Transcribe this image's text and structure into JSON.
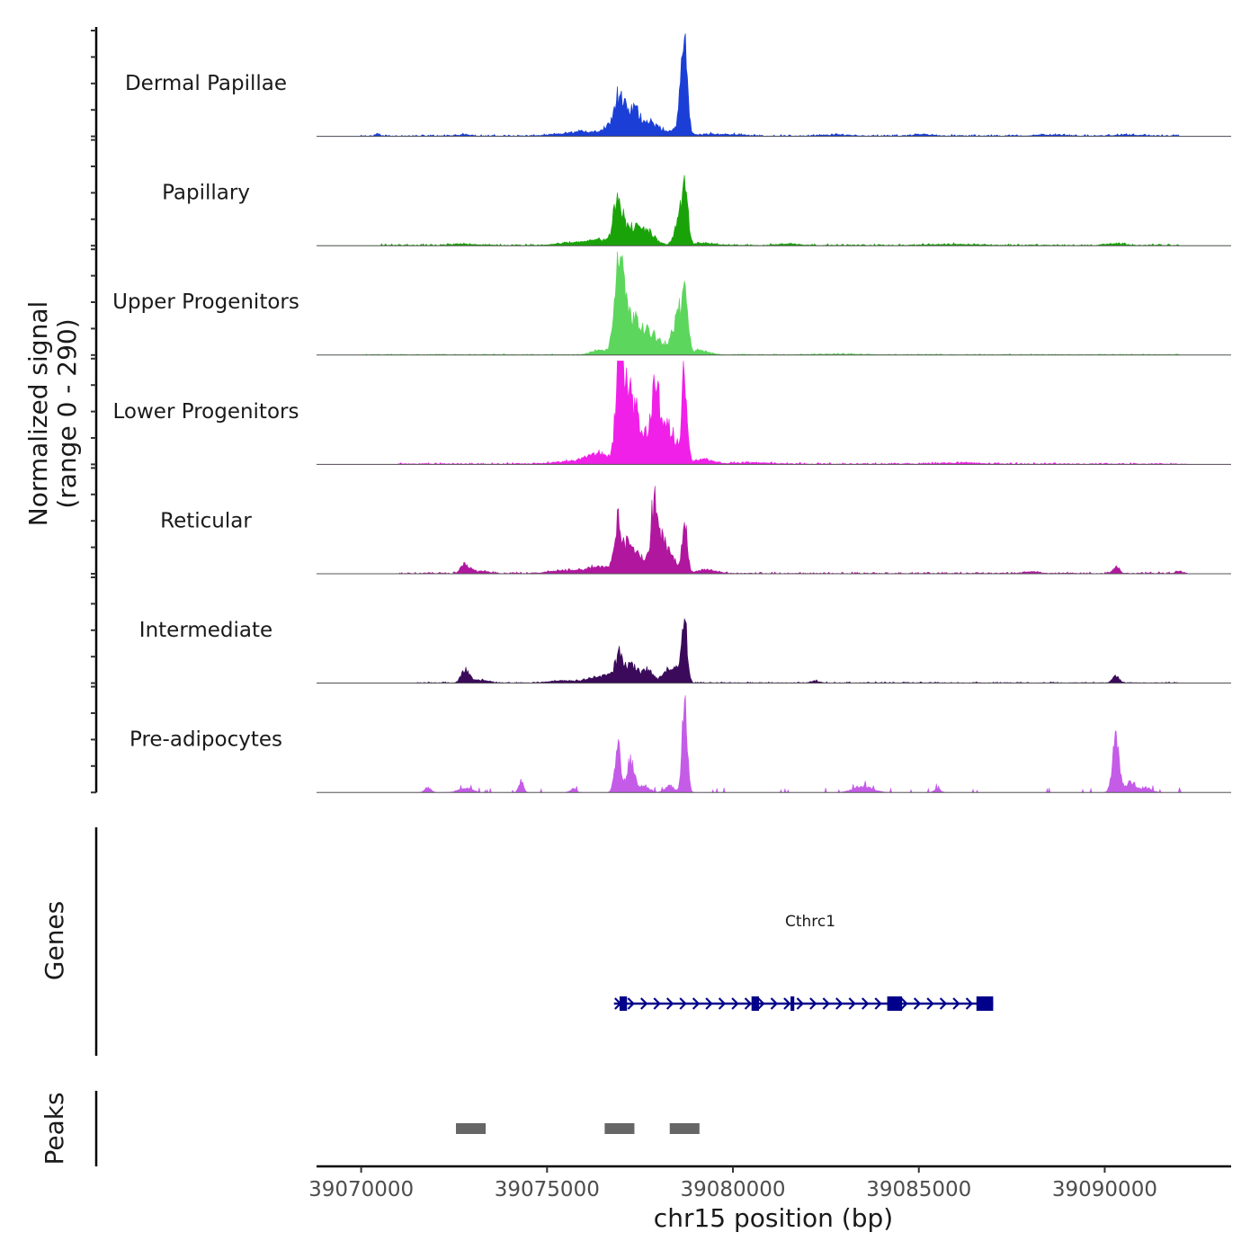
{
  "chart_data": {
    "type": "area",
    "ylabel_line1": "Normalized signal",
    "ylabel_line2": "(range 0 - 290)",
    "ylim": [
      0,
      290
    ],
    "xlabel": "chr15 position (bp)",
    "xlim": [
      39068800,
      39093400
    ],
    "x_ticks": [
      39070000,
      39075000,
      39080000,
      39085000,
      39090000
    ],
    "x_tick_labels": [
      "39070000",
      "39075000",
      "39080000",
      "39085000",
      "39090000"
    ],
    "tracks": [
      {
        "name": "Dermal Papillae",
        "color": "#1B3FD6",
        "base": 3,
        "noise_range": [
          39070000,
          39092000
        ],
        "noise_step": 150,
        "peaks": [
          [
            39070450,
            5,
            60
          ],
          [
            39072800,
            4,
            150
          ],
          [
            39075500,
            5,
            400
          ],
          [
            39076100,
            10,
            350
          ],
          [
            39076700,
            26,
            200
          ],
          [
            39076900,
            90,
            100
          ],
          [
            39077100,
            60,
            100
          ],
          [
            39077350,
            70,
            120
          ],
          [
            39077650,
            35,
            150
          ],
          [
            39077950,
            22,
            200
          ],
          [
            39078400,
            10,
            150
          ],
          [
            39078700,
            230,
            80
          ],
          [
            39078600,
            60,
            90
          ],
          [
            39079300,
            5,
            300
          ],
          [
            39080100,
            4,
            300
          ],
          [
            39082800,
            3,
            400
          ],
          [
            39085100,
            4,
            300
          ],
          [
            39088500,
            3,
            400
          ],
          [
            39090600,
            3,
            400
          ]
        ]
      },
      {
        "name": "Papillary",
        "color": "#1AA309",
        "base": 3,
        "noise_range": [
          39070500,
          39092000
        ],
        "noise_step": 200,
        "peaks": [
          [
            39072800,
            4,
            300
          ],
          [
            39075600,
            6,
            400
          ],
          [
            39076300,
            14,
            300
          ],
          [
            39076900,
            120,
            100
          ],
          [
            39077200,
            50,
            300
          ],
          [
            39077700,
            30,
            200
          ],
          [
            39078700,
            175,
            80
          ],
          [
            39078500,
            50,
            100
          ],
          [
            39079200,
            6,
            300
          ],
          [
            39081500,
            4,
            300
          ],
          [
            39086000,
            3,
            600
          ],
          [
            39090300,
            5,
            200
          ]
        ]
      },
      {
        "name": "Upper Progenitors",
        "color": "#5CD65C",
        "base": 2,
        "noise_range": [
          39070000,
          39092000
        ],
        "noise_step": 200,
        "peaks": [
          [
            39076450,
            12,
            250
          ],
          [
            39076950,
            250,
            120
          ],
          [
            39077250,
            95,
            200
          ],
          [
            39077750,
            60,
            250
          ],
          [
            39078300,
            20,
            200
          ],
          [
            39078700,
            215,
            80
          ],
          [
            39078500,
            80,
            120
          ],
          [
            39079100,
            12,
            250
          ],
          [
            39083000,
            2,
            600
          ]
        ]
      },
      {
        "name": "Lower Progenitors",
        "color": "#F020E8",
        "base": 3,
        "noise_range": [
          39071000,
          39092200
        ],
        "noise_step": 150,
        "peaks": [
          [
            39075800,
            8,
            500
          ],
          [
            39076400,
            25,
            300
          ],
          [
            39076950,
            280,
            100
          ],
          [
            39077200,
            170,
            150
          ],
          [
            39077500,
            100,
            150
          ],
          [
            39077900,
            195,
            120
          ],
          [
            39078150,
            80,
            150
          ],
          [
            39078400,
            60,
            150
          ],
          [
            39078700,
            240,
            70
          ],
          [
            39079200,
            14,
            250
          ],
          [
            39080500,
            4,
            500
          ],
          [
            39086000,
            3,
            600
          ]
        ]
      },
      {
        "name": "Reticular",
        "color": "#B0179E",
        "base": 3,
        "noise_range": [
          39071000,
          39092200
        ],
        "noise_step": 170,
        "peaks": [
          [
            39072800,
            25,
            120
          ],
          [
            39073200,
            6,
            200
          ],
          [
            39075500,
            8,
            400
          ],
          [
            39076400,
            20,
            300
          ],
          [
            39076900,
            130,
            100
          ],
          [
            39077200,
            80,
            150
          ],
          [
            39077500,
            40,
            150
          ],
          [
            39077900,
            210,
            100
          ],
          [
            39078150,
            70,
            120
          ],
          [
            39078400,
            30,
            150
          ],
          [
            39078700,
            140,
            70
          ],
          [
            39079300,
            10,
            250
          ],
          [
            39088000,
            5,
            200
          ],
          [
            39090300,
            18,
            90
          ],
          [
            39092000,
            5,
            100
          ]
        ]
      },
      {
        "name": "Intermediate",
        "color": "#3B0A5A",
        "base": 2,
        "noise_range": [
          39071500,
          39092000
        ],
        "noise_step": 200,
        "peaks": [
          [
            39072800,
            40,
            100
          ],
          [
            39073200,
            8,
            200
          ],
          [
            39075500,
            6,
            400
          ],
          [
            39076500,
            20,
            300
          ],
          [
            39076950,
            70,
            120
          ],
          [
            39077300,
            45,
            150
          ],
          [
            39077700,
            35,
            150
          ],
          [
            39078200,
            30,
            120
          ],
          [
            39078700,
            165,
            70
          ],
          [
            39078450,
            45,
            120
          ],
          [
            39082200,
            6,
            100
          ],
          [
            39090300,
            20,
            90
          ]
        ]
      },
      {
        "name": "Pre-adipocytes",
        "color": "#C45CE8",
        "base": 0,
        "noise_range": [
          39070700,
          39092100
        ],
        "noise_step": 220,
        "peaks": [
          [
            39071800,
            14,
            80
          ],
          [
            39072800,
            12,
            180
          ],
          [
            39074300,
            35,
            60
          ],
          [
            39075700,
            10,
            80
          ],
          [
            39076900,
            130,
            80
          ],
          [
            39077250,
            90,
            100
          ],
          [
            39077600,
            18,
            150
          ],
          [
            39078300,
            18,
            120
          ],
          [
            39078700,
            230,
            70
          ],
          [
            39083500,
            18,
            250
          ],
          [
            39085500,
            10,
            80
          ],
          [
            39090300,
            160,
            90
          ],
          [
            39090700,
            30,
            120
          ],
          [
            39091100,
            14,
            150
          ]
        ]
      }
    ],
    "genes_label": "Genes",
    "gene": {
      "name": "Cthrc1",
      "start": 39076800,
      "end": 39087000,
      "strand": "+",
      "color": "#00008B",
      "exons": [
        [
          39076950,
          39077150
        ],
        [
          39080500,
          39080700
        ],
        [
          39081550,
          39081650
        ],
        [
          39084150,
          39084550
        ],
        [
          39086550,
          39087000
        ]
      ]
    },
    "peaks_label": "Peaks",
    "peak_regions": [
      [
        39072550,
        39073350
      ],
      [
        39076550,
        39077350
      ],
      [
        39078300,
        39079100
      ]
    ],
    "peak_color": "#666666"
  }
}
